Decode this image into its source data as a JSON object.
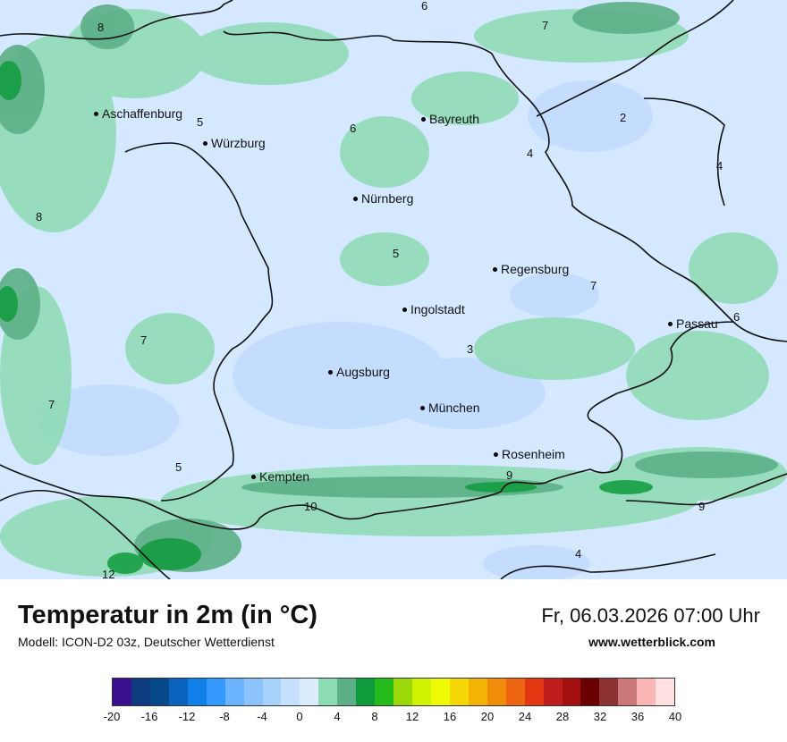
{
  "map": {
    "cities": [
      {
        "id": "aschaffenburg",
        "name": "Aschaffenburg"
      },
      {
        "id": "wuerzburg",
        "name": "Würzburg"
      },
      {
        "id": "bayreuth",
        "name": "Bayreuth"
      },
      {
        "id": "nuernberg",
        "name": "Nürnberg"
      },
      {
        "id": "regensburg",
        "name": "Regensburg"
      },
      {
        "id": "ingolstadt",
        "name": "Ingolstadt"
      },
      {
        "id": "passau",
        "name": "Passau"
      },
      {
        "id": "augsburg",
        "name": "Augsburg"
      },
      {
        "id": "muenchen",
        "name": "München"
      },
      {
        "id": "rosenheim",
        "name": "Rosenheim"
      },
      {
        "id": "kempten",
        "name": "Kempten"
      }
    ],
    "isotherm_labels": [
      "6",
      "7",
      "8",
      "5",
      "6",
      "2",
      "4",
      "4",
      "8",
      "5",
      "7",
      "6",
      "7",
      "3",
      "7",
      "5",
      "9",
      "10",
      "9",
      "4",
      "12"
    ]
  },
  "footer": {
    "title": "Temperatur in 2m (in °C)",
    "model": "Modell: ICON-D2 03z, Deutscher Wetterdienst",
    "datetime": "Fr, 06.03.2026 07:00 Uhr",
    "website": "www.wetterblick.com"
  },
  "legend": {
    "colors": [
      "#3a0f8f",
      "#0d3b7d",
      "#074a8c",
      "#0a63bc",
      "#0f80e8",
      "#3399ff",
      "#6cb4ff",
      "#8cc3ff",
      "#a9d3ff",
      "#c6e0ff",
      "#dbecff",
      "#8cdbb2",
      "#5caf86",
      "#0f9b3c",
      "#25bb1b",
      "#9ad80a",
      "#cef200",
      "#eefb05",
      "#f4d705",
      "#f2b305",
      "#f18c0a",
      "#ee6512",
      "#e33712",
      "#bf1c1c",
      "#a40f0f",
      "#6a0000",
      "#8c3232",
      "#c97777",
      "#fbb6b6",
      "#ffe1e1"
    ],
    "ticks": [
      "-20",
      "-16",
      "-12",
      "-8",
      "-4",
      "0",
      "4",
      "8",
      "12",
      "16",
      "20",
      "24",
      "28",
      "32",
      "36",
      "40"
    ]
  }
}
